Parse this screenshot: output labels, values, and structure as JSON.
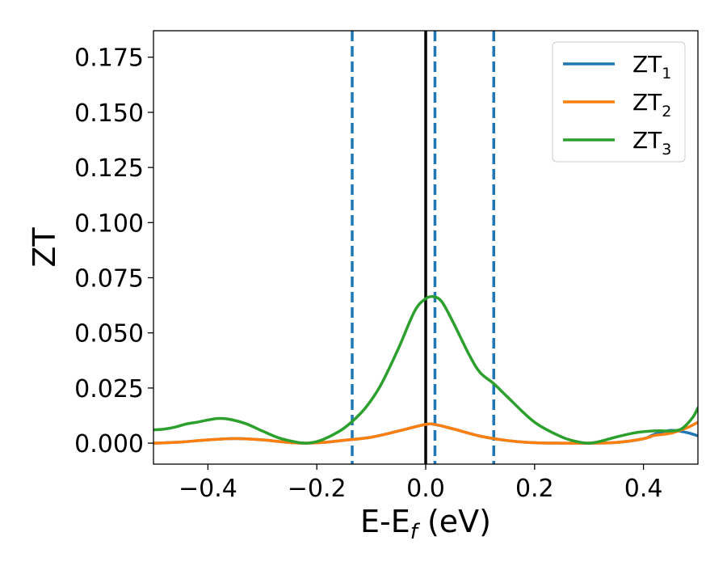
{
  "chart_data": {
    "type": "line",
    "xlabel": "E-E",
    "xlabel_sub": "f",
    "xlabel_unit": " (eV)",
    "ylabel": "ZT",
    "xlim": [
      -0.5,
      0.5
    ],
    "ylim": [
      -0.0095,
      0.187
    ],
    "xticks": [
      -0.4,
      -0.2,
      0.0,
      0.2,
      0.4
    ],
    "xtick_labels": [
      "−0.4",
      "−0.2",
      "0.0",
      "0.2",
      "0.4"
    ],
    "yticks": [
      0.0,
      0.025,
      0.05,
      0.075,
      0.1,
      0.125,
      0.15,
      0.175
    ],
    "ytick_labels": [
      "0.000",
      "0.025",
      "0.050",
      "0.075",
      "0.100",
      "0.125",
      "0.150",
      "0.175"
    ],
    "grid": false,
    "legend_position": "top-right",
    "solid_vline": {
      "x": 0.0,
      "color": "#000000"
    },
    "dashed_vlines": {
      "x": [
        -0.135,
        0.017,
        0.125
      ],
      "color": "#1f77b4"
    },
    "series": [
      {
        "name": "ZT",
        "name_sub": "1",
        "color": "#1f77b4",
        "x": [
          -0.5,
          -0.45,
          -0.4,
          -0.35,
          -0.3,
          -0.25,
          -0.22,
          -0.18,
          -0.15,
          -0.1,
          -0.05,
          0.0,
          0.02,
          0.05,
          0.1,
          0.15,
          0.2,
          0.25,
          0.3,
          0.35,
          0.4,
          0.42,
          0.45,
          0.48,
          0.5
        ],
        "y": [
          0.0,
          0.0005,
          0.0015,
          0.0021,
          0.0015,
          0.0003,
          0.0,
          0.0005,
          0.0013,
          0.0027,
          0.0055,
          0.0085,
          0.0083,
          0.0065,
          0.0032,
          0.0012,
          0.0002,
          0.0,
          0.0,
          0.0003,
          0.002,
          0.004,
          0.0058,
          0.0048,
          0.0033
        ]
      },
      {
        "name": "ZT",
        "name_sub": "2",
        "color": "#ff7f0e",
        "x": [
          -0.5,
          -0.45,
          -0.4,
          -0.35,
          -0.3,
          -0.25,
          -0.22,
          -0.18,
          -0.15,
          -0.1,
          -0.05,
          0.0,
          0.02,
          0.05,
          0.1,
          0.15,
          0.2,
          0.25,
          0.3,
          0.35,
          0.4,
          0.42,
          0.45,
          0.48,
          0.5
        ],
        "y": [
          0.0,
          0.0005,
          0.0015,
          0.0021,
          0.0015,
          0.0003,
          0.0,
          0.0005,
          0.0013,
          0.0027,
          0.0055,
          0.0085,
          0.0083,
          0.0065,
          0.0032,
          0.0012,
          0.0002,
          0.0,
          0.0,
          0.0003,
          0.002,
          0.0035,
          0.0045,
          0.007,
          0.0095
        ]
      },
      {
        "name": "ZT",
        "name_sub": "3",
        "color": "#2ca02c",
        "x": [
          -0.5,
          -0.48,
          -0.46,
          -0.44,
          -0.42,
          -0.4,
          -0.38,
          -0.36,
          -0.33,
          -0.3,
          -0.27,
          -0.24,
          -0.22,
          -0.2,
          -0.18,
          -0.15,
          -0.12,
          -0.1,
          -0.08,
          -0.05,
          -0.02,
          0.0,
          0.015,
          0.03,
          0.05,
          0.08,
          0.1,
          0.125,
          0.15,
          0.2,
          0.25,
          0.28,
          0.3,
          0.32,
          0.35,
          0.38,
          0.4,
          0.43,
          0.45,
          0.47,
          0.49,
          0.5
        ],
        "y": [
          0.006,
          0.0064,
          0.0073,
          0.0087,
          0.0095,
          0.0105,
          0.0112,
          0.0108,
          0.0088,
          0.0055,
          0.0024,
          0.0006,
          0.0,
          0.0007,
          0.0026,
          0.0068,
          0.0134,
          0.0195,
          0.0275,
          0.043,
          0.06,
          0.0655,
          0.0664,
          0.064,
          0.055,
          0.04,
          0.032,
          0.027,
          0.021,
          0.0095,
          0.0028,
          0.0006,
          0.0,
          0.0008,
          0.0028,
          0.0045,
          0.0052,
          0.0056,
          0.0055,
          0.0065,
          0.0115,
          0.016
        ]
      }
    ]
  }
}
